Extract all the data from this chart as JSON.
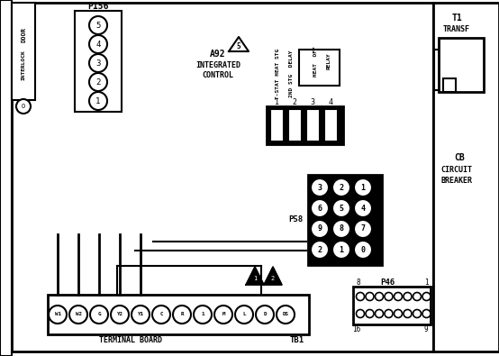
{
  "bg_color": "#ffffff",
  "line_color": "#000000",
  "figsize": [
    5.54,
    3.95
  ],
  "dpi": 100,
  "p156_pins": [
    "5",
    "4",
    "3",
    "2",
    "1"
  ],
  "terminal_labels": [
    "W1",
    "W2",
    "G",
    "Y2",
    "Y1",
    "C",
    "R",
    "1",
    "M",
    "L",
    "D",
    "DS"
  ],
  "p58_rows": [
    [
      3,
      2,
      1
    ],
    [
      6,
      5,
      4
    ],
    [
      9,
      8,
      7
    ],
    [
      2,
      1,
      0
    ]
  ],
  "relay_pins": [
    "1",
    "2",
    "3",
    "4"
  ],
  "col_labels": [
    "T-STAT HEAT STG",
    "2ND STG  DELAY",
    "HEAT  OFF",
    "RELAY"
  ]
}
